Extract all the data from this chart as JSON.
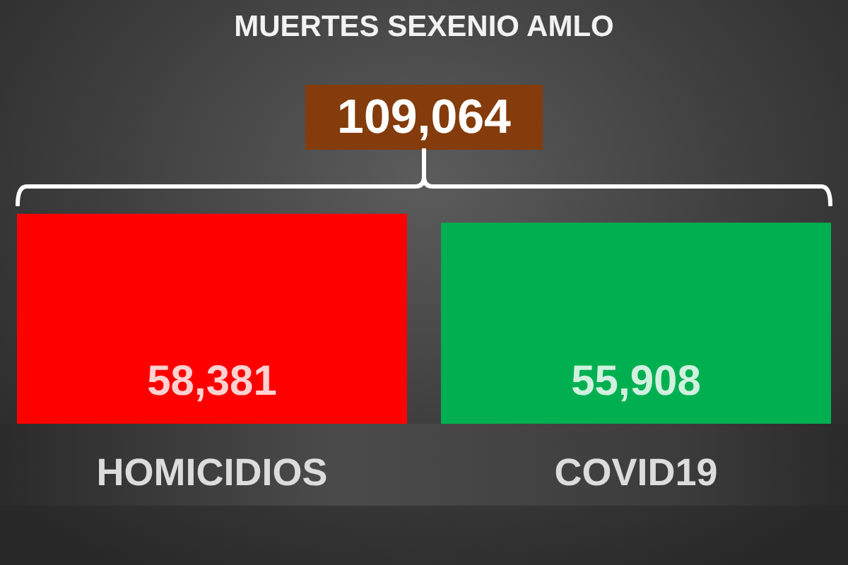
{
  "chart_data": {
    "type": "bar",
    "title": "MUERTES SEXENIO AMLO",
    "categories": [
      "HOMICIDIOS",
      "COVID19"
    ],
    "values": [
      58381,
      55908
    ],
    "colors": [
      "#ff0000",
      "#00b050"
    ],
    "value_labels": [
      "58,381",
      "55,908"
    ],
    "annotations": [
      "109,064"
    ]
  }
}
